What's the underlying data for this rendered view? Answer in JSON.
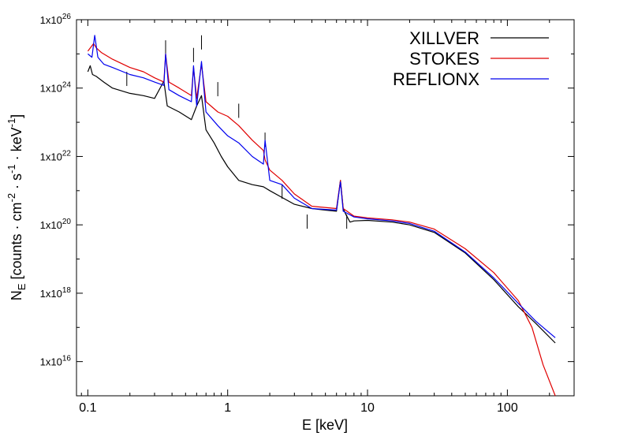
{
  "chart_data": {
    "type": "line",
    "title": "",
    "xlabel": "E [keV]",
    "ylabel_parts": {
      "main": "N",
      "sub": "E",
      "rest_a": " [counts · cm",
      "exp_a": "-2",
      "rest_b": " · s",
      "exp_b": "-1",
      "rest_c": " · keV",
      "exp_c": "-1",
      "rest_d": "]"
    },
    "xscale": "log",
    "yscale": "log",
    "xlim": [
      0.083,
      300
    ],
    "ylim": [
      1000000000000000.0,
      1e+26
    ],
    "grid": false,
    "legend_position": "top-right",
    "x_ticks": [
      {
        "value": 0.1,
        "label": "0.1"
      },
      {
        "value": 1,
        "label": "1"
      },
      {
        "value": 10,
        "label": "10"
      },
      {
        "value": 100,
        "label": "100"
      }
    ],
    "y_ticks": [
      {
        "exp": 26,
        "base": "1x10",
        "sup": "26"
      },
      {
        "exp": 24,
        "base": "1x10",
        "sup": "24"
      },
      {
        "exp": 22,
        "base": "1x10",
        "sup": "22"
      },
      {
        "exp": 20,
        "base": "1x10",
        "sup": "20"
      },
      {
        "exp": 18,
        "base": "1x10",
        "sup": "18"
      },
      {
        "exp": 16,
        "base": "1x10",
        "sup": "16"
      }
    ],
    "series": [
      {
        "name": "XILLVER",
        "color": "#000000",
        "points": [
          [
            0.1,
            3e+24
          ],
          [
            0.104,
            4.5e+24
          ],
          [
            0.108,
            2.5e+24
          ],
          [
            0.115,
            2.2e+24
          ],
          [
            0.13,
            1.5e+24
          ],
          [
            0.15,
            1e+24
          ],
          [
            0.2,
            7e+23
          ],
          [
            0.25,
            6e+23
          ],
          [
            0.3,
            5e+23
          ],
          [
            0.35,
            1.6e+24
          ],
          [
            0.37,
            3e+23
          ],
          [
            0.45,
            2e+23
          ],
          [
            0.55,
            1.2e+23
          ],
          [
            0.6,
            3e+23
          ],
          [
            0.65,
            6e+23
          ],
          [
            0.7,
            6e+22
          ],
          [
            0.8,
            2.5e+22
          ],
          [
            0.9,
            1e+22
          ],
          [
            1.0,
            5e+21
          ],
          [
            1.2,
            2e+21
          ],
          [
            1.5,
            1.5e+21
          ],
          [
            1.8,
            1.3e+21
          ],
          [
            2.0,
            1e+21
          ],
          [
            2.5,
            6e+20
          ],
          [
            3.0,
            4e+20
          ],
          [
            4.0,
            3e+20
          ],
          [
            5.0,
            2.7e+20
          ],
          [
            6.0,
            2.5e+20
          ],
          [
            6.4,
            2e+21
          ],
          [
            6.7,
            3e+20
          ],
          [
            7.0,
            2e+20
          ],
          [
            7.5,
            1.2e+20
          ],
          [
            8.0,
            1.3e+20
          ],
          [
            10,
            1.35e+20
          ],
          [
            15,
            1.2e+20
          ],
          [
            20,
            1e+20
          ],
          [
            30,
            6e+19
          ],
          [
            50,
            1.5e+19
          ],
          [
            80,
            2.5e+18
          ],
          [
            120,
            4e+17
          ],
          [
            160,
            1.3e+17
          ],
          [
            220,
            3.5e+16
          ]
        ],
        "lines": [
          [
            0.19,
            3e+24
          ],
          [
            0.36,
            2.5e+25
          ],
          [
            0.57,
            1.5e+25
          ],
          [
            0.65,
            3.5e+25
          ],
          [
            0.85,
            1.5e+24
          ],
          [
            1.2,
            3.5e+23
          ],
          [
            1.85,
            5e+22
          ],
          [
            2.45,
            1.5e+21
          ],
          [
            3.7,
            2e+20
          ],
          [
            7.1,
            2e+20
          ]
        ]
      },
      {
        "name": "STOKES",
        "color": "#e00000",
        "points": [
          [
            0.1,
            1.2e+25
          ],
          [
            0.11,
            2e+25
          ],
          [
            0.115,
            1.5e+25
          ],
          [
            0.125,
            1.1e+25
          ],
          [
            0.15,
            7e+24
          ],
          [
            0.2,
            4e+24
          ],
          [
            0.25,
            3e+24
          ],
          [
            0.3,
            2e+24
          ],
          [
            0.35,
            1.5e+24
          ],
          [
            0.36,
            1e+25
          ],
          [
            0.38,
            1.5e+24
          ],
          [
            0.45,
            1e+24
          ],
          [
            0.55,
            6e+23
          ],
          [
            0.57,
            4e+24
          ],
          [
            0.6,
            5e+23
          ],
          [
            0.65,
            5e+24
          ],
          [
            0.7,
            4e+23
          ],
          [
            0.85,
            2e+23
          ],
          [
            1.0,
            1.5e+23
          ],
          [
            1.2,
            8e+22
          ],
          [
            1.5,
            3e+22
          ],
          [
            1.8,
            1.5e+22
          ],
          [
            1.85,
            8e+21
          ],
          [
            2.0,
            4e+21
          ],
          [
            2.45,
            2e+21
          ],
          [
            3.0,
            8e+20
          ],
          [
            4.0,
            3.5e+20
          ],
          [
            6.0,
            3e+20
          ],
          [
            6.4,
            2e+21
          ],
          [
            6.7,
            3e+20
          ],
          [
            8.0,
            1.8e+20
          ],
          [
            10,
            1.6e+20
          ],
          [
            15,
            1.4e+20
          ],
          [
            20,
            1.2e+20
          ],
          [
            30,
            7.5e+19
          ],
          [
            50,
            2e+19
          ],
          [
            80,
            4e+18
          ],
          [
            120,
            6e+17
          ],
          [
            150,
            1e+17
          ],
          [
            180,
            8000000000000000.0
          ],
          [
            220,
            1000000000000000.0
          ]
        ]
      },
      {
        "name": "REFLIONX",
        "color": "#0000ee",
        "points": [
          [
            0.1,
            1e+25
          ],
          [
            0.107,
            8e+24
          ],
          [
            0.112,
            3.5e+25
          ],
          [
            0.118,
            8e+24
          ],
          [
            0.13,
            5e+24
          ],
          [
            0.15,
            4e+24
          ],
          [
            0.2,
            2.5e+24
          ],
          [
            0.25,
            2e+24
          ],
          [
            0.3,
            1.5e+24
          ],
          [
            0.35,
            1.2e+24
          ],
          [
            0.36,
            1e+25
          ],
          [
            0.38,
            9e+23
          ],
          [
            0.45,
            6e+23
          ],
          [
            0.55,
            4e+23
          ],
          [
            0.57,
            4.5e+24
          ],
          [
            0.6,
            3e+23
          ],
          [
            0.65,
            6e+24
          ],
          [
            0.7,
            2e+23
          ],
          [
            0.85,
            8e+22
          ],
          [
            1.0,
            4e+22
          ],
          [
            1.2,
            2.5e+22
          ],
          [
            1.5,
            1e+22
          ],
          [
            1.8,
            6e+21
          ],
          [
            1.85,
            3e+22
          ],
          [
            2.0,
            2e+21
          ],
          [
            2.45,
            1.5e+21
          ],
          [
            3.0,
            6e+20
          ],
          [
            4.0,
            3e+20
          ],
          [
            6.0,
            2.7e+20
          ],
          [
            6.4,
            1.8e+21
          ],
          [
            6.7,
            2.5e+20
          ],
          [
            8.0,
            1.7e+20
          ],
          [
            10,
            1.5e+20
          ],
          [
            15,
            1.3e+20
          ],
          [
            20,
            1.1e+20
          ],
          [
            30,
            6.5e+19
          ],
          [
            50,
            1.6e+19
          ],
          [
            80,
            2.8e+18
          ],
          [
            120,
            5e+17
          ],
          [
            160,
            1.5e+17
          ],
          [
            220,
            5e+16
          ]
        ]
      }
    ]
  }
}
